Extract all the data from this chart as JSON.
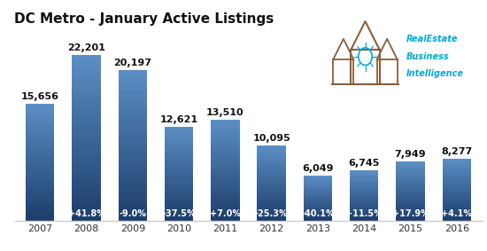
{
  "title": "DC Metro - January Active Listings",
  "years": [
    "2007",
    "2008",
    "2009",
    "2010",
    "2011",
    "2012",
    "2013",
    "2014",
    "2015",
    "2016"
  ],
  "values": [
    15656,
    22201,
    20197,
    12621,
    13510,
    10095,
    6049,
    6745,
    7949,
    8277
  ],
  "pct_changes": [
    "",
    "+41.8%",
    "-9.0%",
    "-37.5%",
    "+7.0%",
    "-25.3%",
    "-40.1%",
    "+11.5%",
    "+17.9%",
    "+4.1%"
  ],
  "bar_color_top": "#5b8ec4",
  "bar_color_bottom": "#1c3d6b",
  "background_color": "#ffffff",
  "title_fontsize": 11,
  "value_fontsize": 8,
  "pct_fontsize": 7,
  "tick_fontsize": 8,
  "ylim": [
    0,
    25500
  ],
  "logo_text_line1": "RealEstate",
  "logo_text_line2": "Business",
  "logo_text_line3": "Intelligence",
  "logo_color": "#00aadd",
  "house_color": "#8b5e3c",
  "bottom_line_color": "#cccccc"
}
